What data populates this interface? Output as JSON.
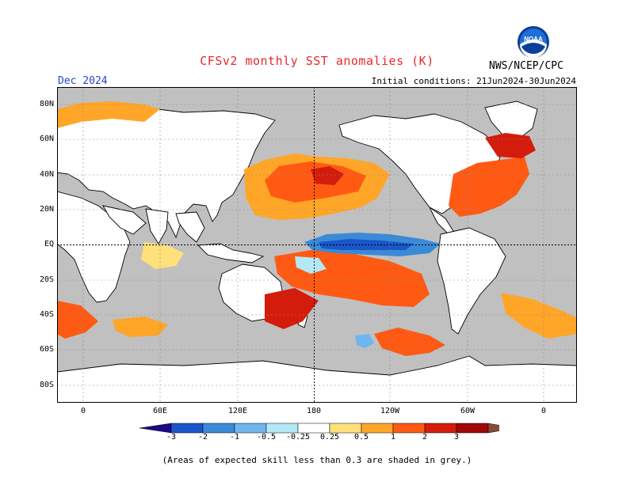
{
  "title": "CFSv2 monthly SST anomalies (K)",
  "forecast_month": "Dec 2024",
  "initial_conditions": "Initial conditions: 21Jun2024-30Jun2024",
  "agency": "NWS/NCEP/CPC",
  "logo_text": "NOAA",
  "footnote": "(Areas of expected skill less than 0.3 are shaded in grey.)",
  "map": {
    "projection": "cylindrical equidistant, 20E-360E",
    "lat_labels": [
      "80N",
      "60N",
      "40N",
      "20N",
      "EQ",
      "20S",
      "40S",
      "60S",
      "80S"
    ],
    "lon_labels": [
      "0",
      "60E",
      "120E",
      "180",
      "120W",
      "60W",
      "0"
    ],
    "reference_lines": [
      "equator",
      "180 meridian"
    ],
    "land_color": "#ffffff",
    "low_skill_color": "#c0c0c0",
    "highlights": "Strong cold anomaly (-1 to -2 K) along the equatorial Pacific; warm anomalies (0.5 to 2 K) in the North Pacific, North Atlantic and Southern Ocean"
  },
  "colorbar": {
    "labels": [
      "-3",
      "-2",
      "-1",
      "-0.5",
      "-0.25",
      "0.25",
      "0.5",
      "1",
      "2",
      "3"
    ],
    "colors": [
      "#1a0a85",
      "#1a56c9",
      "#3a8ad8",
      "#6fb6ef",
      "#b4e8f6",
      "#ffffff",
      "#ffe07a",
      "#ffa528",
      "#ff5a14",
      "#d41c0c",
      "#a00808",
      "#8a4a3a"
    ]
  }
}
